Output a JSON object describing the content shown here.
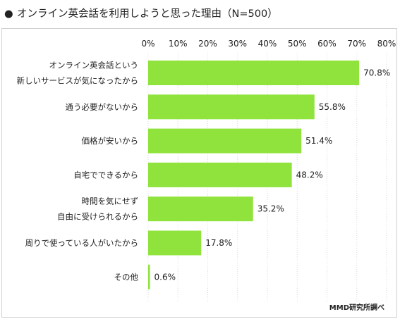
{
  "title": "オンライン英会話を利用しようと思った理由（N=500）",
  "bullet": "●",
  "source": "MMD研究所調べ",
  "colors": {
    "bar": "#8fe33c",
    "grid": "#d9d9d9",
    "text": "#222222"
  },
  "chart_data": {
    "type": "bar",
    "orientation": "horizontal",
    "title": "オンライン英会話を利用しようと思った理由（N=500）",
    "categories": [
      [
        "オンライン英会話という",
        "新しいサービスが気になったから"
      ],
      [
        "通う必要がないから"
      ],
      [
        "価格が安いから"
      ],
      [
        "自宅でできるから"
      ],
      [
        "時間を気にせず",
        "自由に受けられるから"
      ],
      [
        "周りで使っている人がいたから"
      ],
      [
        "その他"
      ]
    ],
    "values": [
      70.8,
      55.8,
      51.4,
      48.2,
      35.2,
      17.8,
      0.6
    ],
    "value_labels": [
      "70.8%",
      "55.8%",
      "51.4%",
      "48.2%",
      "35.2%",
      "17.8%",
      "0.6%"
    ],
    "xlim": [
      0,
      80
    ],
    "ticks": [
      "0%",
      "10%",
      "20%",
      "30%",
      "40%",
      "50%",
      "60%",
      "70%",
      "80%"
    ],
    "grid": true
  }
}
